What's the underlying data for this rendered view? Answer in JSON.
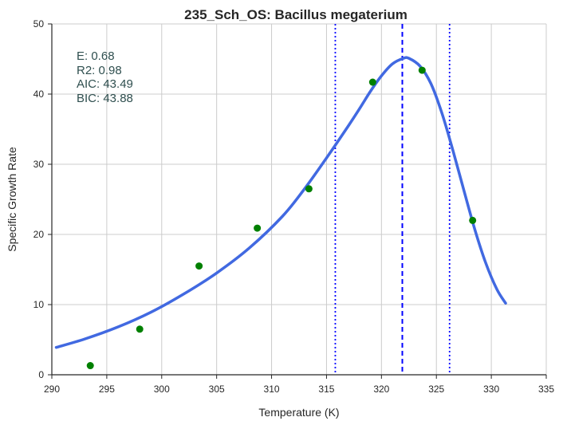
{
  "chart_data": {
    "type": "scatter",
    "title": "235_Sch_OS: Bacillus megaterium",
    "xlabel": "Temperature (K)",
    "ylabel": "Specific Growth Rate",
    "xlim": [
      290,
      335
    ],
    "ylim": [
      0,
      50
    ],
    "x_ticks": [
      290,
      295,
      300,
      305,
      310,
      315,
      320,
      325,
      330,
      335
    ],
    "y_ticks": [
      0,
      10,
      20,
      30,
      40,
      50
    ],
    "grid": true,
    "points": {
      "x": [
        293.5,
        298.0,
        303.4,
        308.7,
        313.4,
        319.2,
        323.7,
        328.3
      ],
      "y": [
        1.3,
        6.5,
        15.5,
        20.9,
        26.5,
        41.7,
        43.4,
        22.0
      ],
      "color": "#008000"
    },
    "fit": {
      "color": "#4169e1",
      "x": [
        290.4,
        293,
        296,
        299,
        302,
        305,
        308,
        311,
        313,
        315,
        317,
        318,
        319,
        320,
        321,
        322,
        322.5,
        323.5,
        324.5,
        325.5,
        326.5,
        327.5,
        328.5,
        329.5,
        330.5,
        331.3
      ],
      "y": [
        3.9,
        5.1,
        6.8,
        8.9,
        11.5,
        14.5,
        18.1,
        22.6,
        26.5,
        30.9,
        35.5,
        37.9,
        40.4,
        42.6,
        44.3,
        45.1,
        45.1,
        44.0,
        41.5,
        37.3,
        32.0,
        26.3,
        20.7,
        15.9,
        12.2,
        10.2
      ]
    },
    "vlines": [
      {
        "x": 315.8,
        "style": "dotted",
        "color": "#0000ff"
      },
      {
        "x": 321.9,
        "style": "dashed",
        "color": "#0000ff"
      },
      {
        "x": 326.2,
        "style": "dotted",
        "color": "#0000ff"
      }
    ],
    "annotations": [
      "E:  0.68",
      "R2:  0.98",
      "AIC: 43.49",
      "BIC: 43.88"
    ]
  }
}
